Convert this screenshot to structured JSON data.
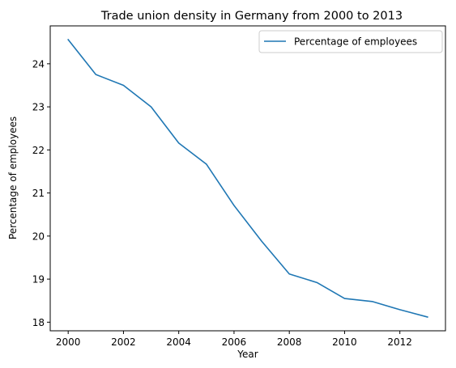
{
  "chart_data": {
    "type": "line",
    "title": "Trade union density in Germany from 2000 to 2013",
    "xlabel": "Year",
    "ylabel": "Percentage of employees",
    "x": [
      2000,
      2001,
      2002,
      2003,
      2004,
      2005,
      2006,
      2007,
      2008,
      2009,
      2010,
      2011,
      2012,
      2013
    ],
    "series": [
      {
        "name": "Percentage of employees",
        "color": "#1f77b4",
        "values": [
          24.56,
          23.75,
          23.5,
          23.0,
          22.16,
          21.67,
          20.71,
          19.88,
          19.12,
          18.92,
          18.55,
          18.48,
          18.29,
          18.12
        ]
      }
    ],
    "xticks": [
      "2000",
      "2002",
      "2004",
      "2006",
      "2008",
      "2010",
      "2012"
    ],
    "yticks": [
      "18",
      "19",
      "20",
      "21",
      "22",
      "23",
      "24"
    ],
    "xlim": [
      1999.35,
      2013.65
    ],
    "ylim": [
      17.8,
      24.88
    ],
    "grid": false,
    "legend": "top-right"
  }
}
